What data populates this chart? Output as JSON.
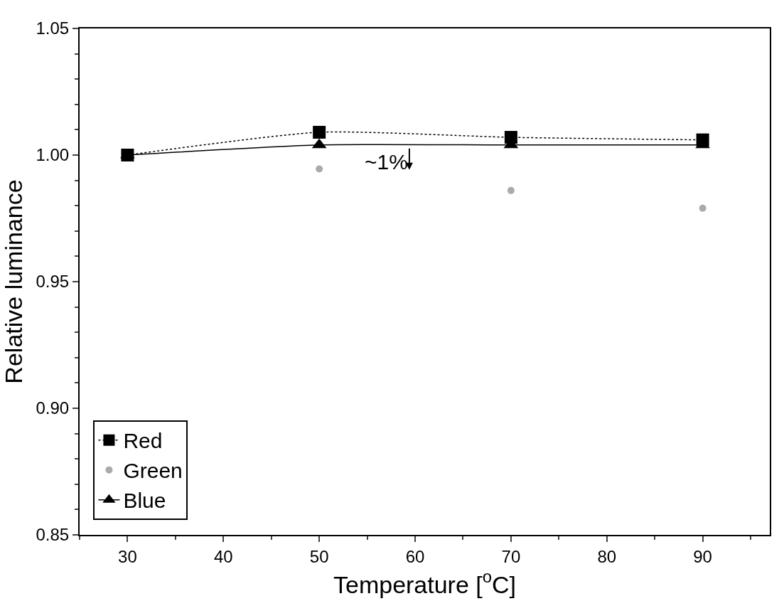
{
  "chart_data": {
    "type": "line",
    "xlabel": "Temperature [$^{o}$C]",
    "ylabel": "Relative luminance",
    "x": [
      30,
      50,
      70,
      90
    ],
    "series": [
      {
        "name": "Red",
        "color": "#000000",
        "values": [
          1.0,
          1.009,
          1.007,
          1.006
        ],
        "marker": "square",
        "line_style": "dotted"
      },
      {
        "name": "Green",
        "color": "#aaaaaa",
        "values": [
          null,
          0.9945,
          0.986,
          0.979
        ],
        "marker": "circle",
        "type": "scatter"
      },
      {
        "name": "Blue",
        "color": "#000000",
        "values": [
          1.0,
          1.004,
          1.004,
          1.004
        ],
        "marker": "triangle",
        "line_style": "solid"
      }
    ],
    "annotations": [
      "~1%"
    ],
    "xlim": [
      25,
      97
    ],
    "xticks": [
      30,
      40,
      50,
      60,
      70,
      80,
      90
    ],
    "ylim": [
      0.85,
      1.05
    ],
    "yticks": [
      {
        "value": 0.85,
        "label": "0.85"
      },
      {
        "value": 0.9,
        "label": "0.90"
      },
      {
        "value": 0.95,
        "label": "0.95"
      },
      {
        "value": 1.0,
        "label": "1.00"
      },
      {
        "value": 1.05,
        "label": "1.05"
      }
    ],
    "legend": "bottom left"
  }
}
